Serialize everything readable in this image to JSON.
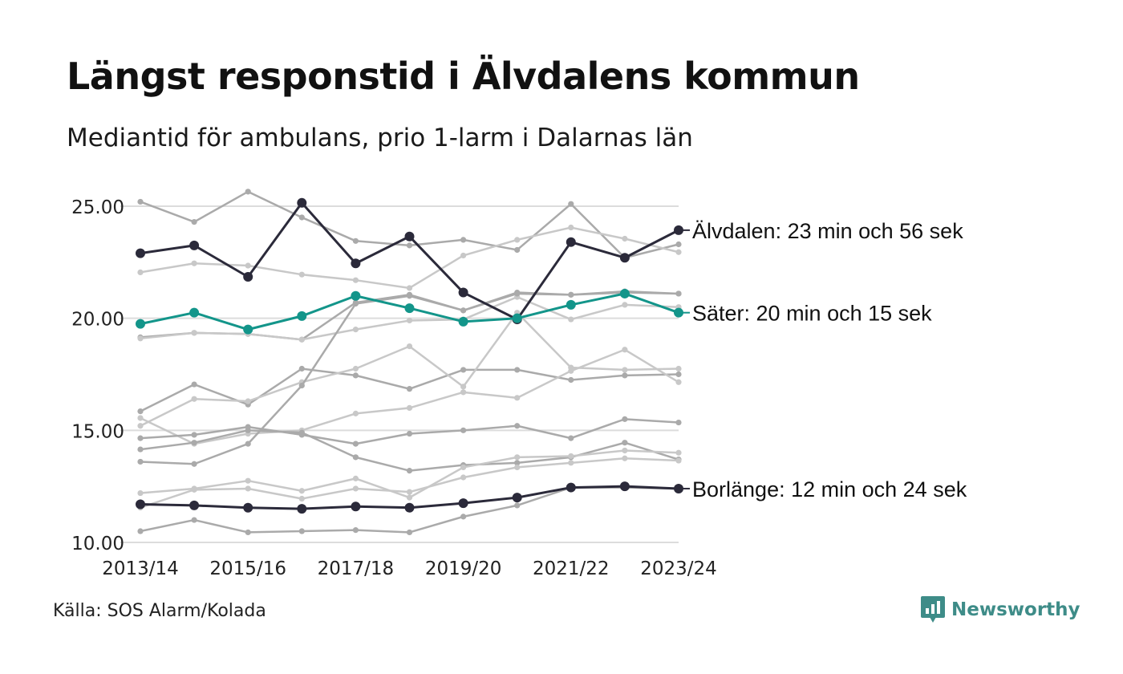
{
  "title": "Längst responstid i Älvdalens kommun",
  "subtitle": "Mediantid för ambulans, prio 1-larm i Dalarnas län",
  "source": "Källa: SOS Alarm/Kolada",
  "brand": {
    "name": "Newsworthy",
    "icon": "bar-chart-speech-icon",
    "color": "#3e8c88"
  },
  "chart_data": {
    "type": "line",
    "x": [
      "2013/14",
      "2014/15",
      "2015/16",
      "2016/17",
      "2017/18",
      "2018/19",
      "2019/20",
      "2020/21",
      "2021/22",
      "2022/23",
      "2023/24"
    ],
    "x_tick_labels": [
      "2013/14",
      "2015/16",
      "2017/18",
      "2019/20",
      "2021/22",
      "2023/24"
    ],
    "y_ticks": [
      "10.00",
      "15.00",
      "20.00",
      "25.00"
    ],
    "ylim": [
      10,
      25
    ],
    "grid": "horizontal",
    "highlighted": [
      {
        "name": "Älvdalen",
        "label": "Älvdalen: 23 min och 56 sek",
        "color": "#2b2a3a",
        "values": [
          22.9,
          23.25,
          21.85,
          25.15,
          22.45,
          23.65,
          21.15,
          19.95,
          23.4,
          22.7,
          23.93
        ]
      },
      {
        "name": "Säter",
        "label": "Säter: 20 min och 15 sek",
        "color": "#13958a",
        "values": [
          19.75,
          20.25,
          19.5,
          20.1,
          21.0,
          20.45,
          19.85,
          20.0,
          20.6,
          21.1,
          20.25
        ]
      },
      {
        "name": "Borlänge",
        "label": "Borlänge: 12 min och 24 sek",
        "color": "#2b2a3a",
        "values": [
          11.7,
          11.65,
          11.55,
          11.5,
          11.6,
          11.55,
          11.75,
          12.0,
          12.45,
          12.5,
          12.4
        ]
      }
    ],
    "background_series": [
      {
        "color": "#aaaaaa",
        "values": [
          25.2,
          24.3,
          25.65,
          24.5,
          23.45,
          23.25,
          23.5,
          23.05,
          25.1,
          22.7,
          23.3
        ]
      },
      {
        "color": "#c8c8c8",
        "values": [
          22.05,
          22.45,
          22.35,
          21.95,
          21.7,
          21.35,
          22.8,
          23.5,
          24.05,
          23.55,
          22.95
        ]
      },
      {
        "color": "#aaaaaa",
        "values": [
          19.15,
          19.35,
          19.3,
          19.05,
          20.7,
          21.05,
          20.35,
          21.15,
          21.05,
          21.2,
          21.1
        ]
      },
      {
        "color": "#c8c8c8",
        "values": [
          19.1,
          19.35,
          19.3,
          19.05,
          19.5,
          19.9,
          19.95,
          20.95,
          19.95,
          20.6,
          20.5
        ]
      },
      {
        "color": "#aaaaaa",
        "values": [
          15.85,
          17.05,
          16.15,
          17.75,
          17.45,
          16.85,
          17.7,
          17.7,
          17.25,
          17.45,
          17.5
        ]
      },
      {
        "color": "#c8c8c8",
        "values": [
          15.2,
          16.4,
          16.3,
          17.15,
          17.75,
          18.75,
          16.95,
          20.25,
          17.8,
          17.7,
          17.75
        ]
      },
      {
        "color": "#c8c8c8",
        "values": [
          15.55,
          14.4,
          14.85,
          15.0,
          15.75,
          16.0,
          16.7,
          16.45,
          17.65,
          18.6,
          17.15
        ]
      },
      {
        "color": "#aaaaaa",
        "values": [
          14.65,
          14.8,
          15.15,
          14.8,
          14.4,
          14.85,
          15.0,
          15.2,
          14.65,
          15.5,
          15.35
        ]
      },
      {
        "color": "#aaaaaa",
        "values": [
          14.15,
          14.45,
          15.0,
          14.9,
          13.8,
          13.2,
          13.45,
          13.55,
          13.8,
          14.45,
          13.7
        ]
      },
      {
        "color": "#aaaaaa",
        "values": [
          13.6,
          13.5,
          14.4,
          17.0,
          20.65,
          21.0,
          20.35,
          21.1,
          21.05,
          21.15,
          21.1
        ]
      },
      {
        "color": "#c8c8c8",
        "values": [
          12.2,
          12.4,
          12.75,
          12.3,
          12.85,
          12.0,
          13.35,
          13.8,
          13.85,
          14.1,
          14.0
        ]
      },
      {
        "color": "#c8c8c8",
        "values": [
          11.55,
          12.35,
          12.4,
          11.95,
          12.4,
          12.25,
          12.9,
          13.35,
          13.55,
          13.75,
          13.65
        ]
      },
      {
        "color": "#aaaaaa",
        "values": [
          10.5,
          11.0,
          10.45,
          10.5,
          10.55,
          10.45,
          11.15,
          11.65,
          12.45,
          12.45,
          12.4
        ]
      }
    ]
  }
}
